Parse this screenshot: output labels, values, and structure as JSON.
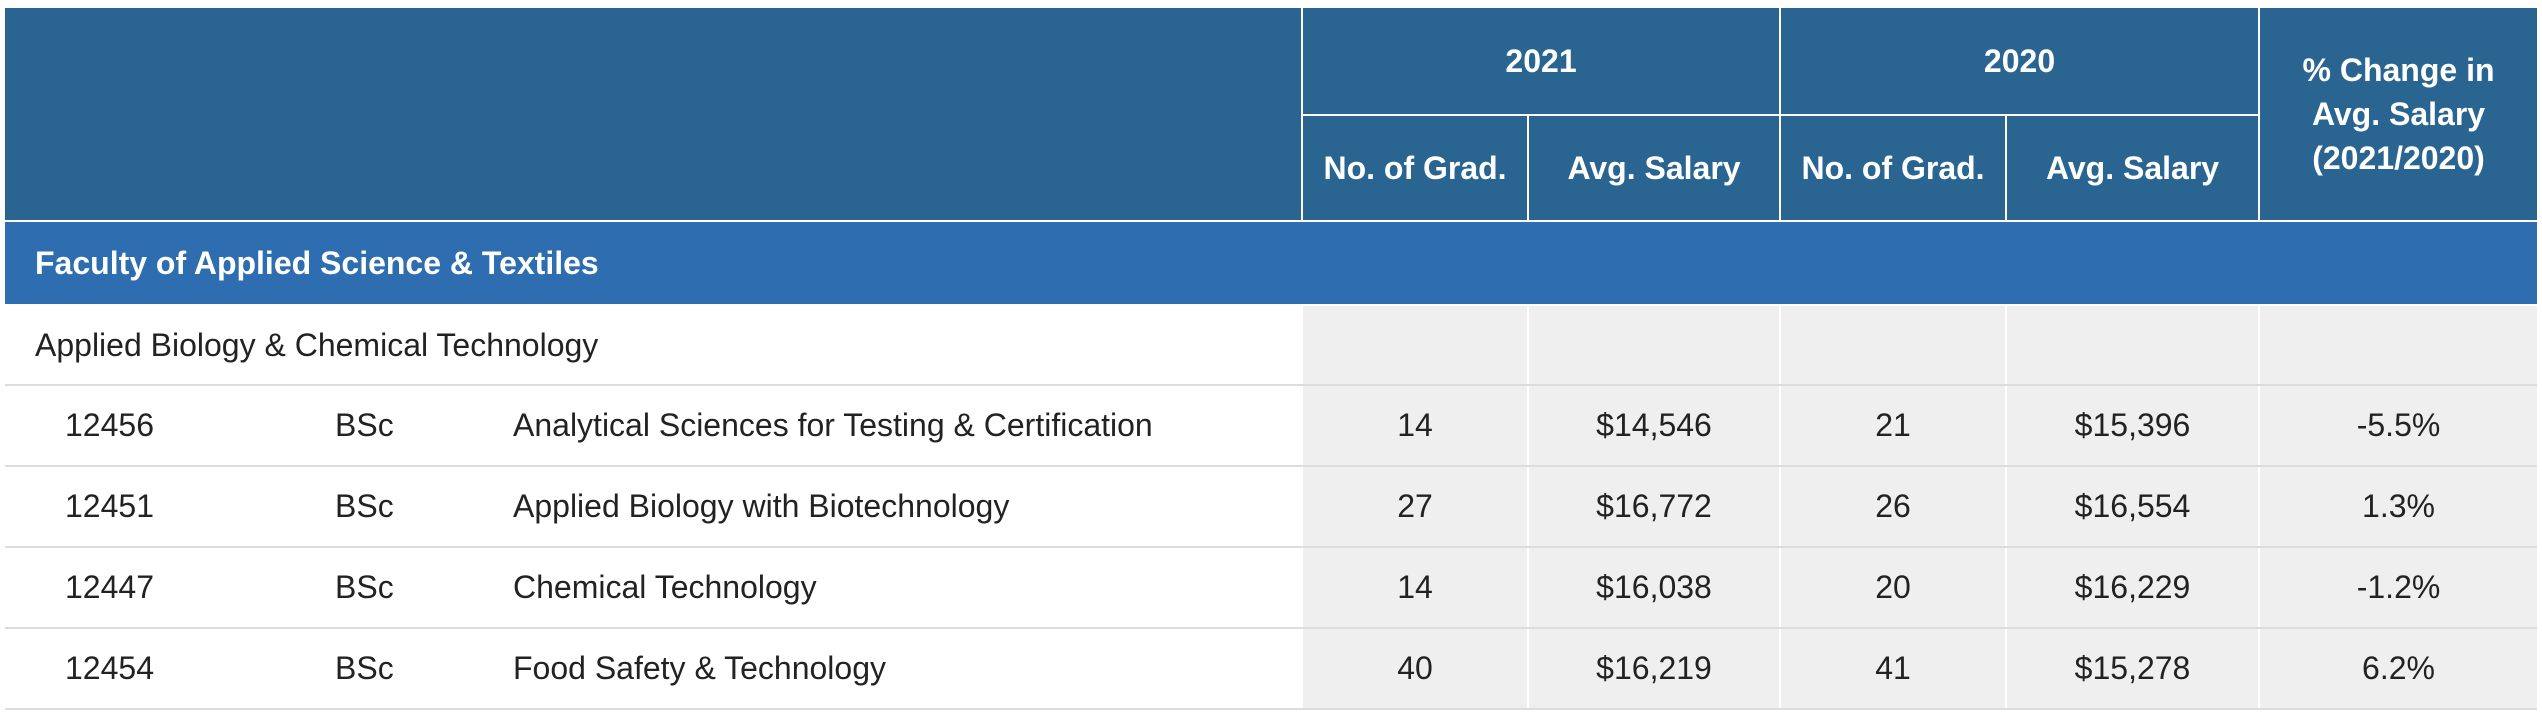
{
  "header": {
    "year_a": "2021",
    "year_b": "2020",
    "grads_label": "No. of Grad.",
    "salary_label": "Avg. Salary",
    "pct_label": "% Change in Avg. Salary (2021/2020)"
  },
  "faculty": {
    "name": "Faculty of Applied Science & Textiles"
  },
  "department": {
    "name": "Applied Biology & Chemical Technology"
  },
  "programs": [
    {
      "code": "12456",
      "degree": "BSc",
      "name": "Analytical Sciences for Testing & Certification",
      "grads_2021": "14",
      "salary_2021": "$14,546",
      "grads_2020": "21",
      "salary_2020": "$15,396",
      "pct_change": "-5.5%"
    },
    {
      "code": "12451",
      "degree": "BSc",
      "name": "Applied Biology with Biotechnology",
      "grads_2021": "27",
      "salary_2021": "$16,772",
      "grads_2020": "26",
      "salary_2020": "$16,554",
      "pct_change": "1.3%"
    },
    {
      "code": "12447",
      "degree": "BSc",
      "name": "Chemical Technology",
      "grads_2021": "14",
      "salary_2021": "$16,038",
      "grads_2020": "20",
      "salary_2020": "$16,229",
      "pct_change": "-1.2%"
    },
    {
      "code": "12454",
      "degree": "BSc",
      "name": "Food Safety & Technology",
      "grads_2021": "40",
      "salary_2021": "$16,219",
      "grads_2020": "41",
      "salary_2020": "$15,278",
      "pct_change": "6.2%"
    }
  ]
}
